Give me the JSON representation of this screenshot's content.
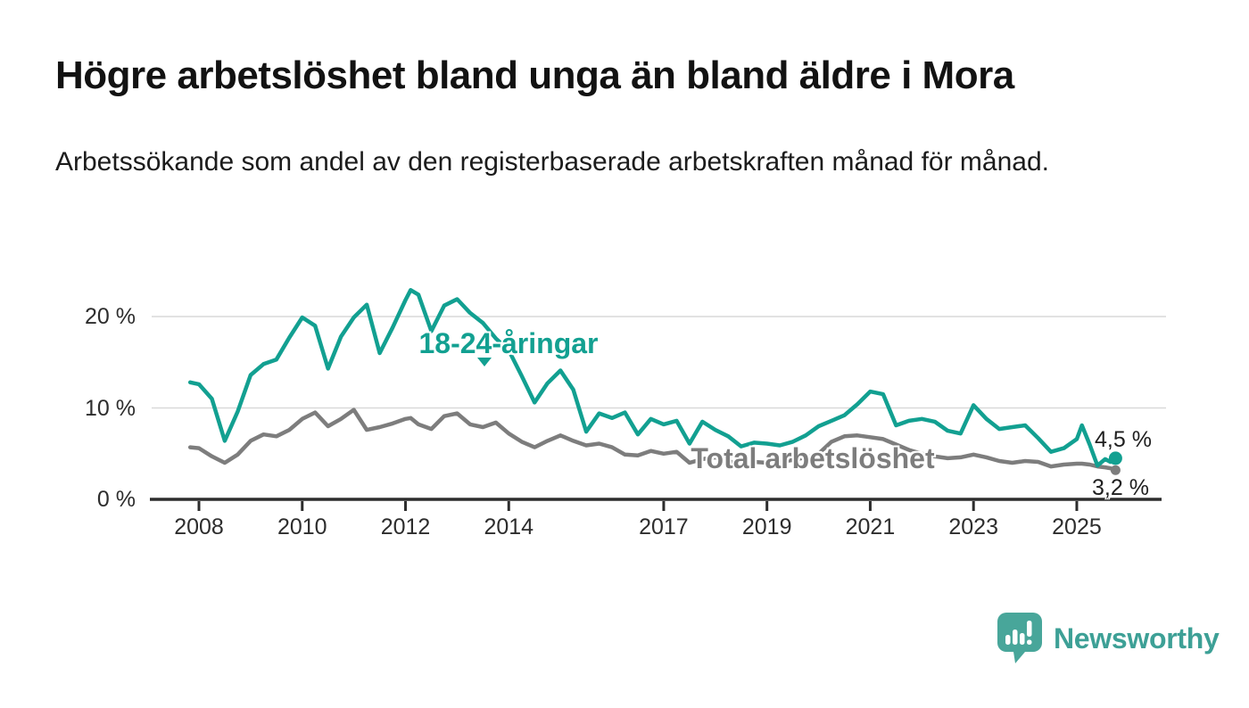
{
  "header": {
    "title": "Högre arbetslöshet bland unga än bland äldre i Mora",
    "subtitle": "Arbetssökande som andel av den registerbaserade arbetskraften månad för månad."
  },
  "footer": {
    "brand": "Newsworthy"
  },
  "colors": {
    "youth_line": "#12a091",
    "total_line": "#7d7d7d",
    "axis": "#2d2d2d",
    "grid": "#d9d9d9",
    "logo": "#48a69a",
    "background": "#ffffff"
  },
  "chart_data": {
    "type": "line",
    "title": "Högre arbetslöshet bland unga än bland äldre i Mora",
    "subtitle": "Arbetssökande som andel av den registerbaserade arbetskraften månad för månad.",
    "unit": "%",
    "grid": "horizontal",
    "legend_position": "inline-labels",
    "x_axis": {
      "min": 2007.8,
      "max": 2026.6,
      "ticks": [
        2008,
        2010,
        2012,
        2014,
        2017,
        2019,
        2021,
        2023,
        2025
      ],
      "tick_labels": [
        "2008",
        "2010",
        "2012",
        "2014",
        "2017",
        "2019",
        "2021",
        "2023",
        "2025"
      ]
    },
    "y_axis": {
      "min": 0,
      "max": 23.5,
      "ticks": [
        0,
        10,
        20
      ],
      "tick_labels": [
        "0 %",
        "10 %",
        "20 %"
      ]
    },
    "x": [
      2007.83,
      2008,
      2008.25,
      2008.5,
      2008.75,
      2009,
      2009.25,
      2009.5,
      2009.75,
      2010,
      2010.25,
      2010.5,
      2010.75,
      2011,
      2011.25,
      2011.5,
      2011.75,
      2012,
      2012.1,
      2012.25,
      2012.5,
      2012.75,
      2013,
      2013.25,
      2013.5,
      2013.75,
      2014,
      2014.25,
      2014.5,
      2014.75,
      2015,
      2015.25,
      2015.5,
      2015.75,
      2016,
      2016.25,
      2016.5,
      2016.75,
      2017,
      2017.25,
      2017.5,
      2017.75,
      2018,
      2018.25,
      2018.5,
      2018.75,
      2019,
      2019.25,
      2019.5,
      2019.75,
      2020,
      2020.25,
      2020.5,
      2020.75,
      2021,
      2021.25,
      2021.5,
      2021.75,
      2022,
      2022.25,
      2022.5,
      2022.75,
      2023,
      2023.25,
      2023.5,
      2023.75,
      2024,
      2024.25,
      2024.5,
      2024.75,
      2025,
      2025.1,
      2025.25,
      2025.4,
      2025.55,
      2025.65,
      2025.75
    ],
    "series": [
      {
        "name": "18-24-åringar",
        "color": "#12a091",
        "end_label": "4,5 %",
        "end_value": 4.5,
        "values": [
          12.8,
          12.6,
          11.0,
          6.4,
          9.6,
          13.6,
          14.8,
          15.3,
          17.7,
          19.9,
          19.0,
          14.3,
          17.8,
          19.9,
          21.3,
          16.0,
          18.8,
          21.8,
          22.9,
          22.4,
          18.4,
          21.2,
          21.9,
          20.4,
          19.3,
          17.6,
          16.3,
          13.5,
          10.6,
          12.7,
          14.1,
          12.0,
          7.4,
          9.4,
          8.9,
          9.5,
          7.1,
          8.8,
          8.2,
          8.6,
          6.1,
          8.5,
          7.6,
          6.9,
          5.8,
          6.2,
          6.1,
          5.9,
          6.3,
          7.0,
          8.0,
          8.6,
          9.2,
          10.4,
          11.8,
          11.5,
          8.1,
          8.6,
          8.8,
          8.5,
          7.5,
          7.2,
          10.3,
          8.8,
          7.7,
          7.9,
          8.1,
          6.7,
          5.2,
          5.6,
          6.6,
          8.1,
          6.0,
          3.7,
          4.4,
          4.1,
          4.5
        ]
      },
      {
        "name": "Total arbetslöshet",
        "color": "#7d7d7d",
        "end_label": "3,2 %",
        "end_value": 3.2,
        "values": [
          5.7,
          5.6,
          4.7,
          4.0,
          4.9,
          6.4,
          7.1,
          6.9,
          7.6,
          8.8,
          9.5,
          8.0,
          8.8,
          9.8,
          7.6,
          7.9,
          8.3,
          8.8,
          8.9,
          8.2,
          7.7,
          9.1,
          9.4,
          8.2,
          7.9,
          8.4,
          7.2,
          6.3,
          5.7,
          6.4,
          7.0,
          6.4,
          5.9,
          6.1,
          5.7,
          4.9,
          4.8,
          5.3,
          5.0,
          5.2,
          4.0,
          4.4,
          4.6,
          4.2,
          3.8,
          4.1,
          4.0,
          4.1,
          4.3,
          4.6,
          5.0,
          6.3,
          6.9,
          7.0,
          6.8,
          6.6,
          6.0,
          5.4,
          5.0,
          4.7,
          4.5,
          4.6,
          4.9,
          4.6,
          4.2,
          4.0,
          4.2,
          4.1,
          3.6,
          3.8,
          3.9,
          3.9,
          3.8,
          3.6,
          3.5,
          3.4,
          3.2
        ]
      }
    ]
  }
}
